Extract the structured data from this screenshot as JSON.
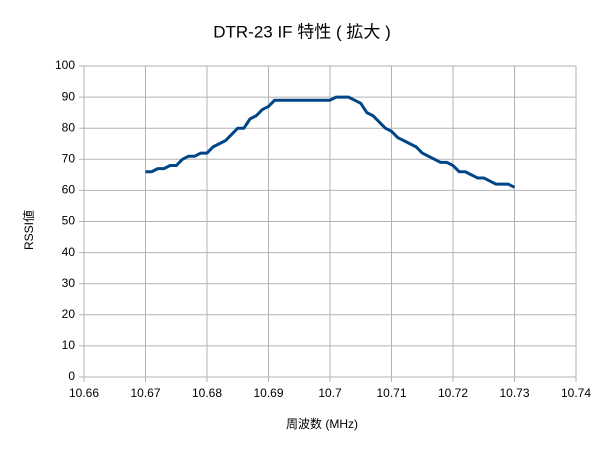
{
  "chart_data": {
    "type": "line",
    "title": "DTR-23 IF 特性 ( 拡大 )",
    "x_label": "周波数 (MHz)",
    "y_label": "RSSI値",
    "x": [
      10.67,
      10.671,
      10.672,
      10.673,
      10.674,
      10.675,
      10.676,
      10.677,
      10.678,
      10.679,
      10.68,
      10.681,
      10.682,
      10.683,
      10.684,
      10.685,
      10.686,
      10.687,
      10.688,
      10.689,
      10.69,
      10.691,
      10.692,
      10.693,
      10.694,
      10.695,
      10.696,
      10.697,
      10.698,
      10.699,
      10.7,
      10.701,
      10.702,
      10.703,
      10.704,
      10.705,
      10.706,
      10.707,
      10.708,
      10.709,
      10.71,
      10.711,
      10.712,
      10.713,
      10.714,
      10.715,
      10.716,
      10.717,
      10.718,
      10.719,
      10.72,
      10.721,
      10.722,
      10.723,
      10.724,
      10.725,
      10.726,
      10.727,
      10.728,
      10.729,
      10.73
    ],
    "series": [
      {
        "name": "RSSI値",
        "color": "#004586",
        "values": [
          66,
          66,
          67,
          67,
          68,
          68,
          70,
          71,
          71,
          72,
          72,
          74,
          75,
          76,
          78,
          80,
          80,
          83,
          84,
          86,
          87,
          89,
          89,
          89,
          89,
          89,
          89,
          89,
          89,
          89,
          89,
          90,
          90,
          90,
          89,
          88,
          85,
          84,
          82,
          80,
          79,
          77,
          76,
          75,
          74,
          72,
          71,
          70,
          69,
          69,
          68,
          66,
          66,
          65,
          64,
          64,
          63,
          62,
          62,
          62,
          61
        ]
      }
    ],
    "xlim": [
      10.66,
      10.74
    ],
    "xticks": [
      10.66,
      10.67,
      10.68,
      10.69,
      10.7,
      10.71,
      10.72,
      10.73,
      10.74
    ],
    "ylim": [
      0,
      100
    ],
    "yticks": [
      0,
      10,
      20,
      30,
      40,
      50,
      60,
      70,
      80,
      90,
      100
    ],
    "grid": true
  }
}
